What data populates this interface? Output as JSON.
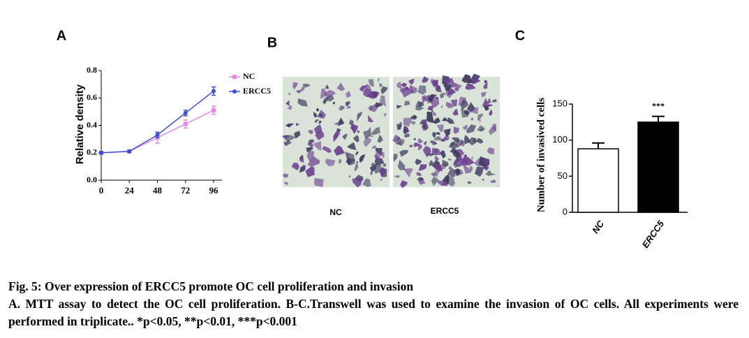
{
  "panels": [
    "A",
    "B",
    "C"
  ],
  "images": {
    "labels": [
      "NC",
      "ERCC5"
    ]
  },
  "chart_data": [
    {
      "type": "line",
      "y_label": "Relative density",
      "x": [
        0,
        24,
        48,
        72,
        96
      ],
      "xlim": [
        0,
        96
      ],
      "xticks": [
        0,
        24,
        48,
        72,
        96
      ],
      "ylim": [
        0,
        0.8
      ],
      "yticks": [
        {
          "value": 0,
          "label": "0.0"
        },
        0.2,
        0.4,
        0.6,
        {
          "value": 0.8,
          "label": "0.8"
        }
      ],
      "legend": "top-right",
      "series": [
        {
          "name": "NC",
          "color": "#e48ae6",
          "marker": "square",
          "values": [
            0.2,
            0.21,
            0.31,
            0.41,
            0.51
          ],
          "errors": [
            0.01,
            0.01,
            0.04,
            0.03,
            0.03
          ]
        },
        {
          "name": "ERCC5",
          "color": "#3f4fcf",
          "marker": "circle",
          "values": [
            0.2,
            0.21,
            0.33,
            0.49,
            0.65
          ],
          "errors": [
            0.01,
            0.01,
            0.02,
            0.02,
            0.03
          ]
        }
      ]
    },
    {
      "type": "bar",
      "y_label": "Number of  invasived cells",
      "categories": [
        "NC",
        "ERCC5"
      ],
      "values": [
        88,
        125
      ],
      "errors": [
        8,
        8
      ],
      "colors": [
        "#ffffff",
        "#000000"
      ],
      "annotations": [
        null,
        "***"
      ],
      "ylim": [
        0,
        150
      ],
      "yticks": [
        0,
        50,
        100,
        150
      ]
    }
  ],
  "caption": {
    "title": "Fig. 5: Over expression of ERCC5 promote OC cell proliferation and invasion",
    "text": "A. MTT assay to detect the OC cell proliferation. B-C.Transwell was used to examine the invasion of OC cells. All experiments were performed in triplicate.. *p<0.05, **p<0.01, ***p<0.001"
  }
}
